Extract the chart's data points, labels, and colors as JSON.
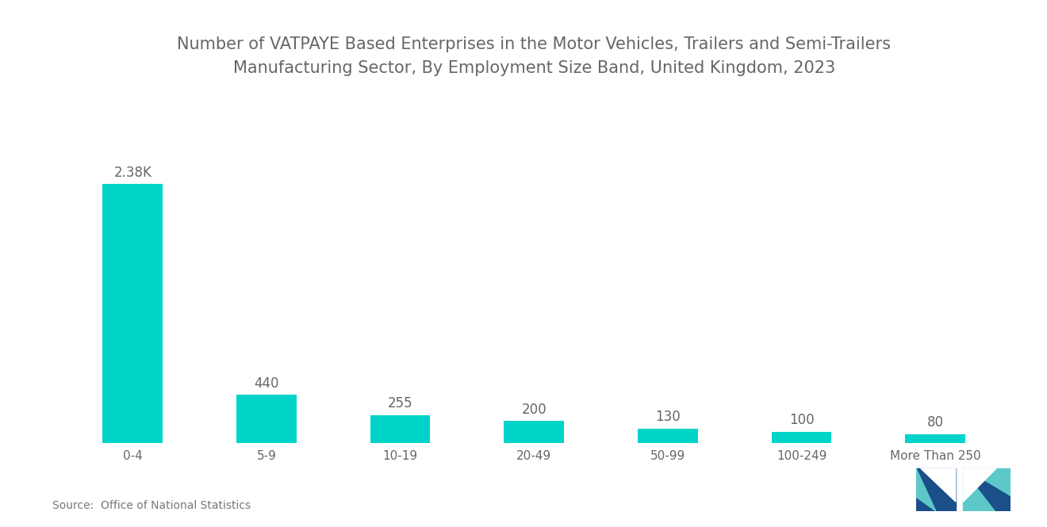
{
  "title": "Number of VATPAYE Based Enterprises in the Motor Vehicles, Trailers and Semi-Trailers\nManufacturing Sector, By Employment Size Band, United Kingdom, 2023",
  "categories": [
    "0-4",
    "5-9",
    "10-19",
    "20-49",
    "50-99",
    "100-249",
    "More Than 250"
  ],
  "values": [
    2380,
    440,
    255,
    200,
    130,
    100,
    80
  ],
  "labels": [
    "2.38K",
    "440",
    "255",
    "200",
    "130",
    "100",
    "80"
  ],
  "bar_colors": [
    "#00D4C8",
    "#00D4C8",
    "#00D4C8",
    "#00D4C8",
    "#00D4C8",
    "#00D4C8",
    "#00D4C8"
  ],
  "background_color": "#ffffff",
  "title_fontsize": 15,
  "label_fontsize": 12,
  "tick_fontsize": 11,
  "source_text": "Source:  Office of National Statistics",
  "ylim": [
    0,
    3200
  ]
}
